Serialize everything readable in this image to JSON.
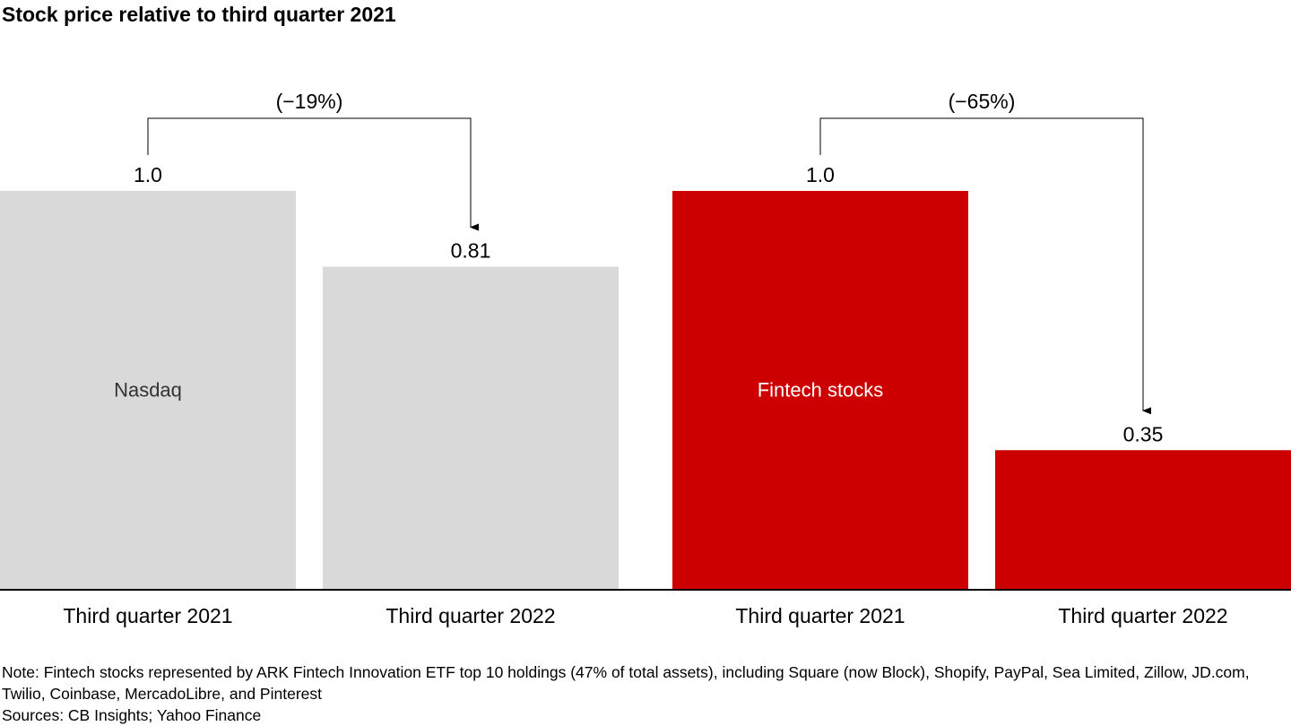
{
  "title": "Stock price relative to third quarter 2021",
  "chart_data": {
    "type": "bar",
    "title": "Stock price relative to third quarter 2021",
    "ylim": [
      0,
      1.0
    ],
    "grid": false,
    "groups": [
      {
        "name": "Nasdaq",
        "color": "#d9d9d9",
        "label_color": "#333333",
        "categories": [
          "Third quarter 2021",
          "Third quarter 2022"
        ],
        "values": [
          1.0,
          0.81
        ],
        "value_labels": [
          "1.0",
          "0.81"
        ],
        "change_label": "(−19%)"
      },
      {
        "name": "Fintech stocks",
        "color": "#cc0000",
        "label_color": "#ffffff",
        "categories": [
          "Third quarter 2021",
          "Third quarter 2022"
        ],
        "values": [
          1.0,
          0.35
        ],
        "value_labels": [
          "1.0",
          "0.35"
        ],
        "change_label": "(−65%)"
      }
    ]
  },
  "footer": {
    "note": "Note: Fintech stocks represented by ARK Fintech Innovation ETF top 10 holdings (47% of total assets), including Square (now Block), Shopify, PayPal, Sea Limited, Zillow, JD.com, Twilio, Coinbase, MercadoLibre, and Pinterest",
    "sources": "Sources: CB Insights; Yahoo Finance"
  }
}
